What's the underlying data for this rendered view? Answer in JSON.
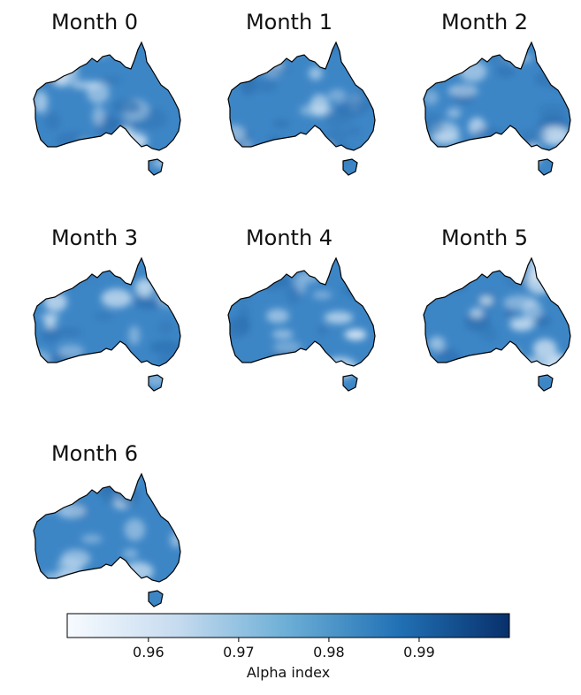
{
  "panels": [
    {
      "title": "Month 0"
    },
    {
      "title": "Month 1"
    },
    {
      "title": "Month 2"
    },
    {
      "title": "Month 3"
    },
    {
      "title": "Month 4"
    },
    {
      "title": "Month 5"
    },
    {
      "title": "Month 6"
    }
  ],
  "colorbar": {
    "label": "Alpha index",
    "min": 0.951,
    "max": 1.0,
    "ticks": [
      "0.96",
      "0.97",
      "0.98",
      "0.99"
    ],
    "colormap": "Blues",
    "colors": [
      "#f7fbff",
      "#c6dbef",
      "#6baed6",
      "#2171b5",
      "#08306b"
    ]
  },
  "map": {
    "region": "Australia",
    "base_color": "#3d86c6",
    "light_color": "#deebf7",
    "outline_color": "#000000"
  }
}
